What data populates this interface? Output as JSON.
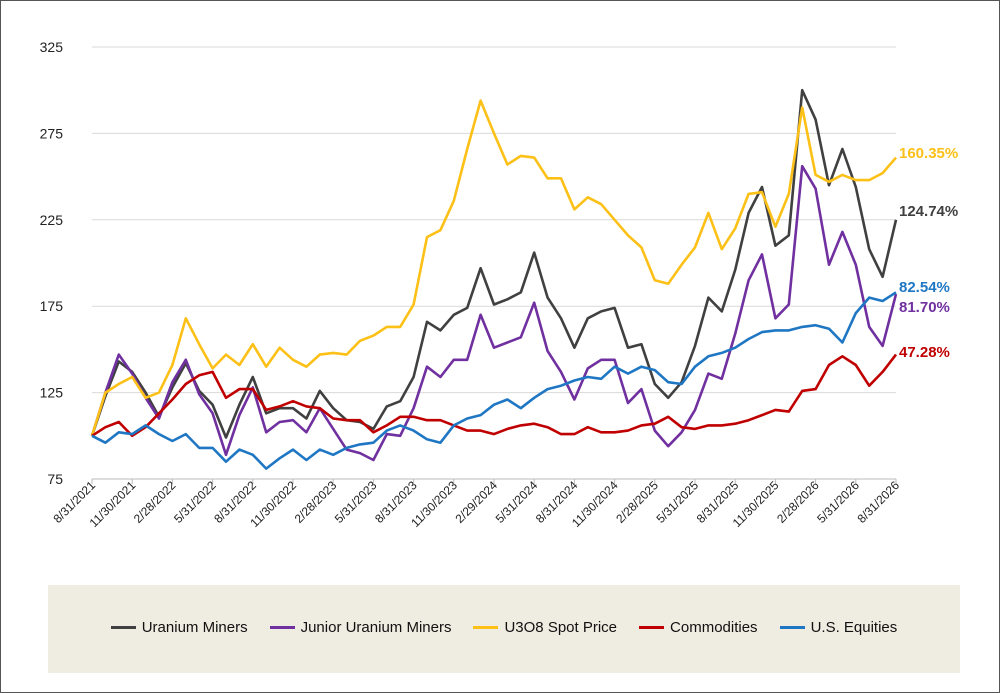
{
  "chart_data": {
    "type": "line",
    "title": "",
    "xlabel": "",
    "ylabel": "",
    "ylim": [
      75,
      325
    ],
    "y_ticks": [
      "325",
      "275",
      "225",
      "175",
      "125",
      "75"
    ],
    "x_tick_labels": [
      "8/31/2021",
      "11/30/2021",
      "2/28/2022",
      "5/31/2022",
      "8/31/2022",
      "11/30/2022",
      "2/28/2023",
      "5/31/2023",
      "8/31/2023",
      "11/30/2023",
      "2/29/2024",
      "5/31/2024",
      "8/31/2024",
      "11/30/2024",
      "2/28/2025",
      "5/31/2025",
      "8/31/2025",
      "11/30/2025",
      "2/28/2026",
      "5/31/2026",
      "8/31/2026"
    ],
    "grid": "horizontal",
    "legend_placement": "bottom",
    "x_start": "8/31/2021",
    "x_end": "8/31/2026",
    "x_frequency": "monthly",
    "series": [
      {
        "name": "Uranium Miners",
        "color": "#404040",
        "end_label": "124.74%",
        "values": [
          100,
          123,
          143,
          137,
          125,
          111,
          128,
          142,
          126,
          118,
          99,
          118,
          134,
          113,
          116,
          116,
          110,
          126,
          116,
          109,
          108,
          104,
          117,
          120,
          134,
          166,
          161,
          170,
          174,
          197,
          176,
          179,
          183,
          206,
          180,
          168,
          151,
          168,
          172,
          174,
          151,
          153,
          130,
          122,
          131,
          152,
          180,
          172,
          196,
          229,
          244,
          210,
          216,
          300,
          283,
          245,
          266,
          244,
          208,
          192,
          225
        ]
      },
      {
        "name": "Junior Uranium Miners",
        "color": "#7030a0",
        "end_label": "81.70%",
        "values": [
          100,
          125,
          147,
          136,
          122,
          110,
          131,
          144,
          124,
          113,
          89,
          112,
          128,
          102,
          108,
          109,
          102,
          116,
          104,
          92,
          90,
          86,
          101,
          100,
          116,
          140,
          134,
          144,
          144,
          170,
          151,
          154,
          157,
          177,
          149,
          137,
          121,
          139,
          144,
          144,
          119,
          127,
          103,
          94,
          102,
          115,
          136,
          133,
          159,
          190,
          205,
          168,
          176,
          256,
          243,
          199,
          218,
          199,
          163,
          152,
          182
        ]
      },
      {
        "name": "U3O8 Spot Price",
        "color": "#fcc017",
        "end_label": "160.35%",
        "values": [
          100,
          125,
          130,
          134,
          122,
          125,
          141,
          168,
          153,
          139,
          147,
          141,
          153,
          140,
          151,
          144,
          140,
          147,
          148,
          147,
          155,
          158,
          163,
          163,
          176,
          215,
          219,
          236,
          266,
          294,
          275,
          257,
          262,
          261,
          249,
          249,
          231,
          238,
          234,
          225,
          216,
          209,
          190,
          188,
          199,
          209,
          229,
          208,
          220,
          240,
          241,
          221,
          240,
          290,
          251,
          247,
          251,
          248,
          248,
          252,
          261
        ]
      },
      {
        "name": "Commodities",
        "color": "#c00000",
        "end_label": "47.28%",
        "values": [
          100,
          105,
          108,
          100,
          105,
          113,
          121,
          130,
          135,
          137,
          122,
          127,
          127,
          115,
          117,
          120,
          117,
          116,
          110,
          109,
          109,
          102,
          106,
          111,
          111,
          109,
          109,
          106,
          103,
          103,
          101,
          104,
          106,
          107,
          105,
          101,
          101,
          105,
          102,
          102,
          103,
          106,
          107,
          111,
          105,
          104,
          106,
          106,
          107,
          109,
          112,
          115,
          114,
          126,
          127,
          141,
          146,
          141,
          129,
          137,
          147
        ]
      },
      {
        "name": "U.S. Equities",
        "color": "#1f77c4",
        "end_label": "82.54%",
        "values": [
          100,
          96,
          102,
          101,
          106,
          101,
          97,
          101,
          93,
          93,
          85,
          92,
          89,
          81,
          87,
          92,
          86,
          92,
          89,
          93,
          95,
          96,
          103,
          106,
          103,
          98,
          96,
          106,
          110,
          112,
          118,
          121,
          116,
          122,
          127,
          129,
          132,
          134,
          133,
          140,
          136,
          140,
          138,
          131,
          130,
          140,
          146,
          148,
          151,
          156,
          160,
          161,
          161,
          163,
          164,
          162,
          154,
          171,
          180,
          178,
          183
        ]
      }
    ]
  }
}
